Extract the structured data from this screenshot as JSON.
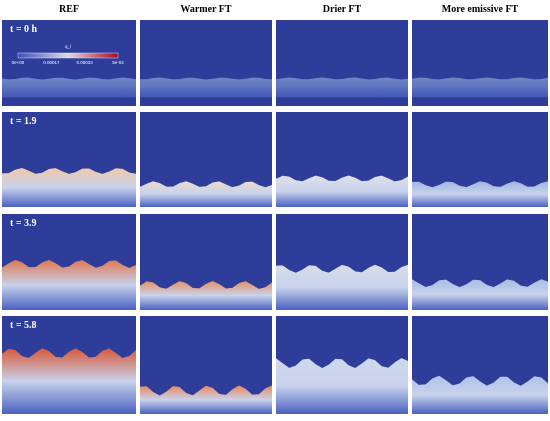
{
  "columns": [
    "REF",
    "Warmer FT",
    "Drier FT",
    "More emissive FT"
  ],
  "rows": [
    {
      "label": "t = 0 h"
    },
    {
      "label": "t = 1.9"
    },
    {
      "label": "t = 3.9"
    },
    {
      "label": "t = 5.8"
    }
  ],
  "colorbar": {
    "title": "q_l",
    "ticks": [
      "0e+00",
      "0.00017",
      "0.00033",
      "5e-04"
    ]
  }
}
